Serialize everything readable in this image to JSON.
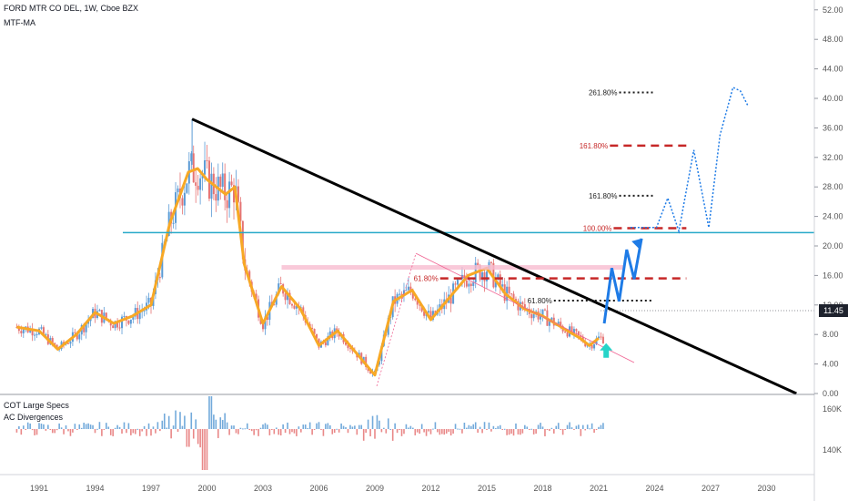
{
  "header": {
    "title": "FORD MTR CO DEL, 1W, Cboe BZX",
    "indicator": "MTF-MA"
  },
  "sub_panel": {
    "title1": "COT Large Specs",
    "title2": "AC Divergences",
    "y_ticks": [
      "160K",
      "140K"
    ]
  },
  "last_price": "11.45",
  "colors": {
    "ma": "#f7a825",
    "candle_up": "#5b9bd5",
    "candle_down": "#e57373",
    "trendline": "#000000",
    "horizontal": "#26a9c9",
    "fib_red": "#c62828",
    "fib_dots": "#1a1a1a",
    "projection": "#1e7be6",
    "arrow": "#26d4c8"
  },
  "chart_data": {
    "type": "line",
    "title": "FORD MTR CO DEL, 1W, Cboe BZX",
    "x_ticks": [
      "1991",
      "1994",
      "1997",
      "2000",
      "2003",
      "2006",
      "2009",
      "2012",
      "2015",
      "2018",
      "2021",
      "2024",
      "2027",
      "2030"
    ],
    "y_ticks": [
      "52.00",
      "48.00",
      "44.00",
      "40.00",
      "36.00",
      "32.00",
      "28.00",
      "24.00",
      "20.00",
      "16.00",
      "12.00",
      "8.00",
      "4.00",
      "0.00"
    ],
    "ylim": [
      0,
      52
    ],
    "xlim": [
      1989.6,
      2033.8
    ],
    "series": [
      {
        "name": "MTF-MA",
        "x": [
          1989.8,
          1991,
          1992,
          1993,
          1994,
          1995,
          1996,
          1997,
          1998,
          1999,
          1999.5,
          2000,
          2001,
          2001.5,
          2002,
          2003,
          2004,
          2005,
          2006,
          2007,
          2008,
          2009,
          2010,
          2011,
          2012,
          2013,
          2014,
          2015,
          2016,
          2017,
          2018,
          2019,
          2020,
          2020.5,
          2021
        ],
        "y": [
          9,
          8.5,
          6,
          8,
          11,
          9.5,
          10.5,
          12,
          23,
          30,
          30.5,
          29,
          27,
          28,
          17.5,
          9.5,
          14.5,
          11.5,
          6.5,
          8.5,
          5.5,
          2.5,
          12.5,
          14,
          10,
          13,
          16,
          17,
          13.5,
          11.5,
          10.5,
          9,
          7.5,
          6.5,
          7.5
        ]
      },
      {
        "name": "Projection",
        "x": [
          2021.3,
          2021.7,
          2022.1,
          2022.5,
          2022.9,
          2023.3
        ],
        "y": [
          9.5,
          17,
          12.5,
          19.5,
          15.5,
          21
        ]
      },
      {
        "name": "Projection dotted",
        "x": [
          2022.7,
          2023.4,
          2024.1,
          2024.7,
          2025.3,
          2026.1,
          2026.9,
          2027.5,
          2028.2,
          2028.6,
          2029.0
        ],
        "y": [
          22.5,
          22.5,
          22.5,
          26.5,
          22,
          33,
          22.5,
          35,
          41.5,
          41,
          39
        ]
      }
    ],
    "annotations": [
      {
        "label": "261.80%",
        "y": 40.8,
        "x_from": 2022.1,
        "x_to": 2023.9,
        "style": "dotted"
      },
      {
        "label": "161.80%",
        "y": 33.6,
        "x_from": 2021.6,
        "x_to": 2025.7,
        "style": "dashed"
      },
      {
        "label": "161.80%",
        "y": 26.8,
        "x_from": 2022.1,
        "x_to": 2023.9,
        "style": "dotted"
      },
      {
        "label": "100.00%",
        "y": 22.4,
        "x_from": 2021.8,
        "x_to": 2025.7,
        "style": "dashed"
      },
      {
        "label": "61.80%",
        "y": 15.6,
        "x_from": 2012.5,
        "x_to": 2025.7,
        "style": "dashed"
      },
      {
        "label": "61.80%",
        "y": 12.6,
        "x_from": 2018.6,
        "x_to": 2023.9,
        "style": "dotted"
      }
    ],
    "trendline": {
      "x": [
        1999.2,
        2031.6
      ],
      "y": [
        37.2,
        0
      ]
    },
    "horizontal_level": 21.8
  }
}
